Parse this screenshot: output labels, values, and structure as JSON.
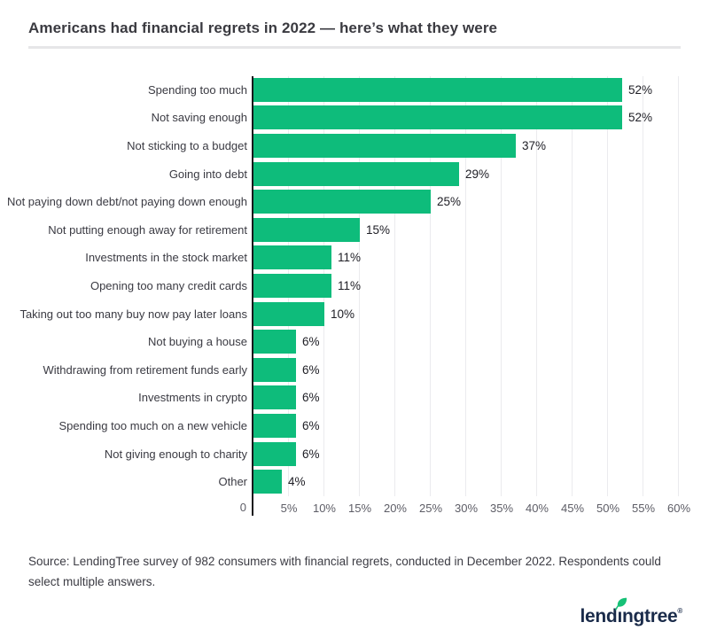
{
  "header": {
    "title": "Americans had financial regrets in 2022 — here’s what they were"
  },
  "chart_data": {
    "type": "bar",
    "orientation": "horizontal",
    "title": "Americans had financial regrets in 2022 — here’s what they were",
    "categories": [
      "Spending too much",
      "Not saving enough",
      "Not sticking to a budget",
      "Going into debt",
      "Not paying down debt/not paying down enough",
      "Not putting enough away for retirement",
      "Investments in the stock market",
      "Opening too many credit cards",
      "Taking out too many buy now pay later loans",
      "Not buying a house",
      "Withdrawing from retirement funds early",
      "Investments in crypto",
      "Spending too much on a new vehicle",
      "Not giving enough to charity",
      "Other"
    ],
    "values": [
      52,
      52,
      37,
      29,
      25,
      15,
      11,
      11,
      10,
      6,
      6,
      6,
      6,
      6,
      4
    ],
    "value_labels": [
      "52%",
      "52%",
      "37%",
      "29%",
      "25%",
      "15%",
      "11%",
      "11%",
      "10%",
      "6%",
      "6%",
      "6%",
      "6%",
      "6%",
      "4%"
    ],
    "xlim": [
      0,
      60
    ],
    "x_ticks": [
      "0",
      "5%",
      "10%",
      "15%",
      "20%",
      "25%",
      "30%",
      "35%",
      "40%",
      "45%",
      "50%",
      "55%",
      "60%"
    ],
    "xlabel": "",
    "ylabel": "",
    "grid": "vertical",
    "legend": "none",
    "bar_color": "#0EBC7B"
  },
  "footer": {
    "source": "Source: LendingTree survey of 982 consumers with financial regrets, conducted in December 2022. Respondents could select multiple answers.",
    "logo": {
      "name": "lendingtree",
      "text_before": "lend",
      "dotless_i": "ı",
      "text_after": "ngtree",
      "registered": "®",
      "leaf_color": "#17C177",
      "wordmark_color": "#1A2B4A"
    }
  }
}
